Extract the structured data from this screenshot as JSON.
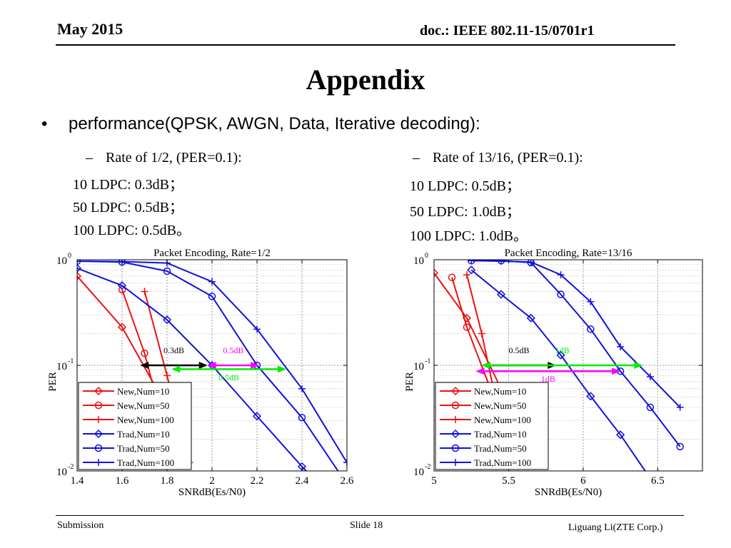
{
  "header": {
    "date": "May 2015",
    "doc": "doc.: IEEE 802.11-15/0701r1"
  },
  "title": "Appendix",
  "bullet": {
    "marker": "•",
    "text": "performance(QPSK, AWGN, Data, Iterative decoding):"
  },
  "left_notes": {
    "dash": "–",
    "rate": "Rate of 1/2, (PER=0.1):",
    "lines": [
      "10 LDPC: 0.3dB；",
      "50 LDPC: 0.5dB；",
      "100 LDPC: 0.5dB。"
    ]
  },
  "right_notes": {
    "dash": "–",
    "rate": "Rate of 13/16, (PER=0.1):",
    "lines": [
      "10 LDPC: 0.5dB；",
      "50 LDPC: 1.0dB；",
      "100 LDPC: 1.0dB。"
    ]
  },
  "footer": {
    "left": "Submission",
    "center": "Slide 18",
    "right": "Liguang Li(ZTE Corp.)"
  },
  "chart_data": [
    {
      "type": "line",
      "title": "Packet Encoding, Rate=1/2",
      "xlabel": "SNRdB(Es/N0)",
      "ylabel": "PER",
      "y_scale": "log",
      "xlim": [
        1.4,
        2.6
      ],
      "ylim": [
        0.01,
        1
      ],
      "xticks": [
        1.4,
        1.6,
        1.8,
        2,
        2.2,
        2.4,
        2.6
      ],
      "xtick_labels": [
        "1.4",
        "1.6",
        "1.8",
        "2",
        "2.2",
        "2.4",
        "2.6"
      ],
      "yticks": [
        1,
        0.1,
        0.01
      ],
      "ytick_labels": [
        {
          "base": "10",
          "exp": "0"
        },
        {
          "base": "10",
          "exp": "-1"
        },
        {
          "base": "10",
          "exp": "-2"
        }
      ],
      "grid": true,
      "legend_position": "bottom-left",
      "series": [
        {
          "name": "New,Num=10",
          "color": "#ee1111",
          "marker": "diamond",
          "x": [
            1.4,
            1.6,
            1.8
          ],
          "y": [
            0.7,
            0.23,
            0.04
          ]
        },
        {
          "name": "New,Num=50",
          "color": "#ee1111",
          "marker": "circle",
          "x": [
            1.6,
            1.7,
            1.8
          ],
          "y": [
            0.52,
            0.13,
            0.02
          ]
        },
        {
          "name": "New,Num=100",
          "color": "#ee1111",
          "marker": "plus",
          "x": [
            1.7,
            1.8,
            1.9
          ],
          "y": [
            0.5,
            0.08,
            0.012
          ]
        },
        {
          "name": "Trad,Num=10",
          "color": "#1111dd",
          "marker": "diamond",
          "x": [
            1.4,
            1.6,
            1.8,
            2.0,
            2.2,
            2.4,
            2.6
          ],
          "y": [
            0.83,
            0.57,
            0.27,
            0.1,
            0.033,
            0.011,
            0.004
          ]
        },
        {
          "name": "Trad,Num=50",
          "color": "#1111dd",
          "marker": "circle",
          "x": [
            1.4,
            1.6,
            1.8,
            2.0,
            2.2,
            2.4,
            2.6
          ],
          "y": [
            0.97,
            0.95,
            0.78,
            0.45,
            0.1,
            0.032,
            0.0075
          ]
        },
        {
          "name": "Trad,Num=100",
          "color": "#1111dd",
          "marker": "plus",
          "x": [
            1.4,
            1.6,
            1.8,
            2.0,
            2.2,
            2.4,
            2.6
          ],
          "y": [
            0.97,
            0.96,
            0.93,
            0.62,
            0.22,
            0.06,
            0.012
          ]
        }
      ],
      "annotations": [
        {
          "text": "0.3dB",
          "color": "#000000",
          "x1": 1.68,
          "x2": 1.98,
          "y": 0.1,
          "label_y": 0.13
        },
        {
          "text": "0.5dB",
          "color": "#ff00ff",
          "x1": 1.98,
          "x2": 2.21,
          "y": 0.1,
          "label_y": 0.13
        },
        {
          "text": "0.5dB",
          "color": "#00ee00",
          "x1": 1.82,
          "x2": 2.33,
          "y": 0.092,
          "label_y": 0.072
        }
      ]
    },
    {
      "type": "line",
      "title": "Packet Encoding, Rate=13/16",
      "xlabel": "SNRdB(Es/N0)",
      "ylabel": "PER",
      "y_scale": "log",
      "xlim": [
        5,
        6.8
      ],
      "ylim": [
        0.01,
        1
      ],
      "xticks": [
        5,
        5.5,
        6,
        6.5
      ],
      "xtick_labels": [
        "5",
        "5.5",
        "6",
        "6.5"
      ],
      "yticks": [
        1,
        0.1,
        0.01
      ],
      "ytick_labels": [
        {
          "base": "10",
          "exp": "0"
        },
        {
          "base": "10",
          "exp": "-1"
        },
        {
          "base": "10",
          "exp": "-2"
        }
      ],
      "grid": true,
      "legend_position": "bottom-left",
      "series": [
        {
          "name": "New,Num=10",
          "color": "#ee1111",
          "marker": "diamond",
          "x": [
            5.0,
            5.22,
            5.45
          ],
          "y": [
            0.75,
            0.28,
            0.06
          ]
        },
        {
          "name": "New,Num=50",
          "color": "#ee1111",
          "marker": "circle",
          "x": [
            5.12,
            5.22,
            5.4
          ],
          "y": [
            0.68,
            0.23,
            0.05
          ]
        },
        {
          "name": "New,Num=100",
          "color": "#ee1111",
          "marker": "plus",
          "x": [
            5.22,
            5.32,
            5.47
          ],
          "y": [
            0.72,
            0.2,
            0.02
          ]
        },
        {
          "name": "Trad,Num=10",
          "color": "#1111dd",
          "marker": "diamond",
          "x": [
            5.25,
            5.45,
            5.65,
            5.85,
            6.05,
            6.25,
            6.45
          ],
          "y": [
            0.8,
            0.47,
            0.28,
            0.125,
            0.051,
            0.022,
            0.0085
          ]
        },
        {
          "name": "Trad,Num=50",
          "color": "#1111dd",
          "marker": "circle",
          "x": [
            5.25,
            5.45,
            5.65,
            5.85,
            6.05,
            6.25,
            6.45,
            6.65
          ],
          "y": [
            0.98,
            0.98,
            0.94,
            0.47,
            0.22,
            0.088,
            0.04,
            0.017
          ]
        },
        {
          "name": "Trad,Num=100",
          "color": "#1111dd",
          "marker": "plus",
          "x": [
            5.25,
            5.45,
            5.65,
            5.85,
            6.05,
            6.25,
            6.45,
            6.65
          ],
          "y": [
            0.98,
            0.97,
            0.95,
            0.72,
            0.4,
            0.15,
            0.078,
            0.04
          ]
        }
      ],
      "annotations": [
        {
          "text": "0.5dB",
          "color": "#000000",
          "x1": 5.32,
          "x2": 5.82,
          "y": 0.1,
          "label_y": 0.13
        },
        {
          "text": "1dB",
          "color": "#00ee00",
          "x1": 5.32,
          "x2": 6.4,
          "y": 0.1,
          "label_y": 0.13
        },
        {
          "text": "1dB",
          "color": "#ff00ff",
          "x1": 5.28,
          "x2": 6.25,
          "y": 0.088,
          "label_y": 0.07
        }
      ]
    }
  ]
}
